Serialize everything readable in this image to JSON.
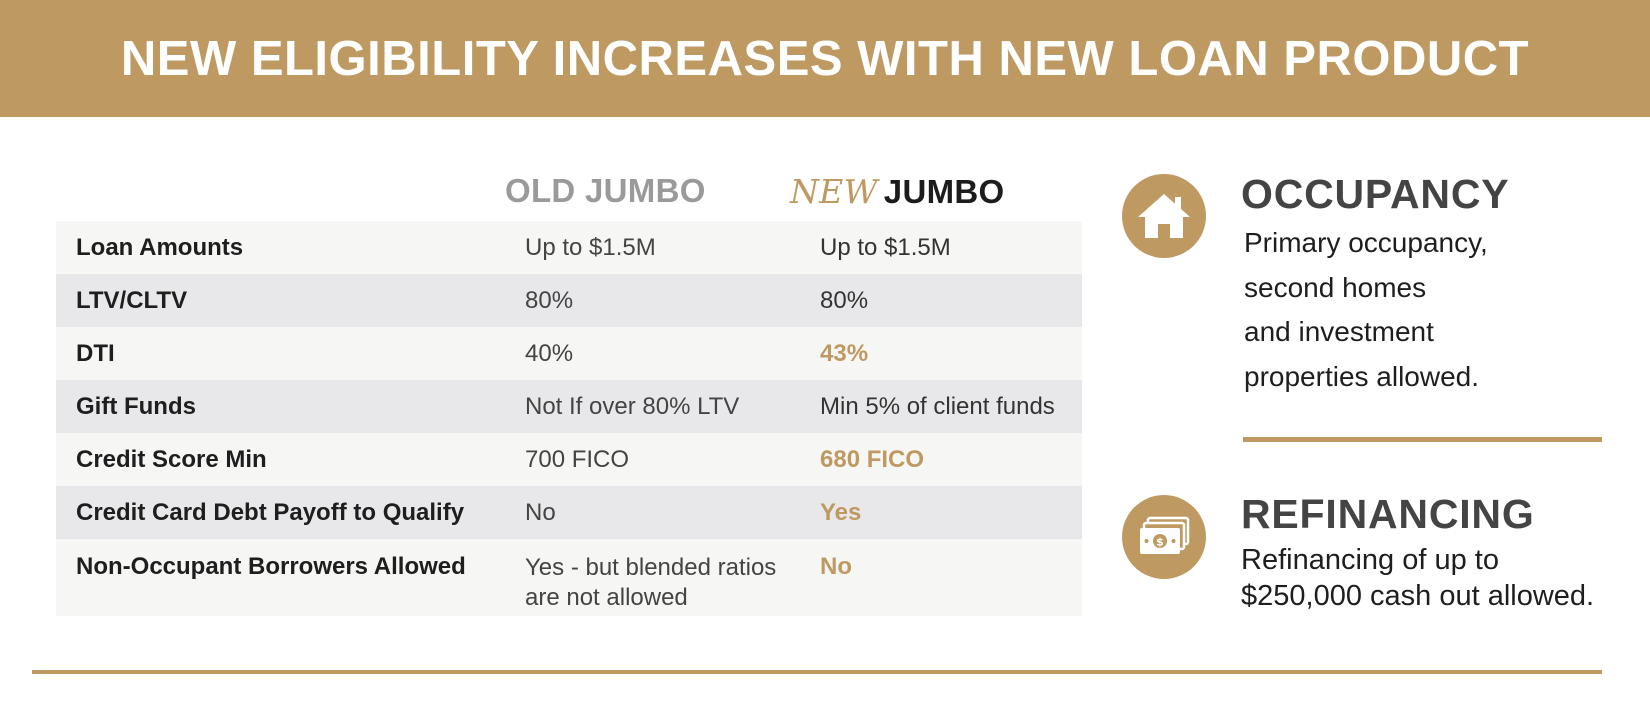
{
  "banner": {
    "title": "NEW ELIGIBILITY INCREASES WITH NEW LOAN PRODUCT"
  },
  "columns": {
    "old": "OLD JUMBO",
    "new_prefix": "NEW",
    "new_suffix": "JUMBO"
  },
  "rows": [
    {
      "label": "Loan Amounts",
      "old": "Up to $1.5M",
      "new": "Up to $1.5M"
    },
    {
      "label": "LTV/CLTV",
      "old": "80%",
      "new": "80%"
    },
    {
      "label": "DTI",
      "old": "40%",
      "new": "43%"
    },
    {
      "label": "Gift Funds",
      "old": "Not If over 80% LTV",
      "new": "Min 5% of client funds"
    },
    {
      "label": "Credit Score Min",
      "old": "700 FICO",
      "new": "680 FICO"
    },
    {
      "label": "Credit Card Debt Payoff to Qualify",
      "old": "No",
      "new": "Yes"
    },
    {
      "label": "Non-Occupant Borrowers Allowed",
      "old_line1": "Yes - but blended ratios",
      "old_line2": "are not allowed",
      "new": "No"
    }
  ],
  "occupancy": {
    "icon": "house-icon",
    "title": "OCCUPANCY",
    "line1": "Primary occupancy,",
    "line2": "second homes",
    "line3": "and investment",
    "line4": "properties allowed."
  },
  "refinancing": {
    "icon": "cash-stack-icon",
    "title": "REFINANCING",
    "line1": "Refinancing of up to",
    "line2": "$250,000 cash out allowed."
  },
  "colors": {
    "accent": "#be9a62",
    "row_light": "#f6f6f4",
    "row_dark": "#e8e8ea"
  }
}
